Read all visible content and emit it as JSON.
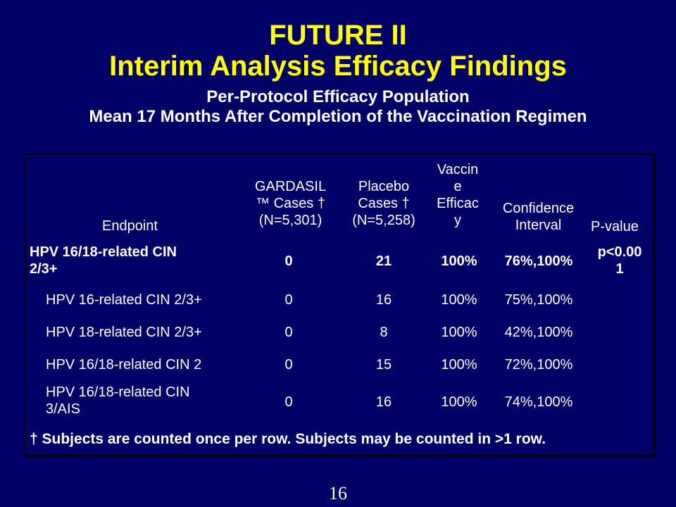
{
  "title": {
    "line1": "FUTURE II",
    "line2": "Interim Analysis Efficacy Findings"
  },
  "subtitle": {
    "line1": "Per-Protocol Efficacy Population",
    "line2": "Mean 17 Months After Completion of the Vaccination Regimen"
  },
  "table": {
    "headers": {
      "endpoint": "Endpoint",
      "gardasil": [
        "GARDASIL",
        "™ Cases †",
        "(N=5,301)"
      ],
      "placebo": [
        "Placebo",
        "Cases †",
        "(N=5,258)"
      ],
      "efficacy": [
        "Vaccin",
        "e",
        "Efficac",
        "y"
      ],
      "ci": [
        "Confidence",
        "Interval"
      ],
      "pvalue": "P-value"
    },
    "rows": [
      {
        "endpoint": [
          "HPV 16/18-related CIN",
          "2/3+"
        ],
        "gardasil": "0",
        "placebo": "21",
        "efficacy": "100%",
        "ci": "76%,100%",
        "pvalue": [
          "p<0.00",
          "1"
        ]
      },
      {
        "endpoint": [
          "HPV 16-related CIN 2/3+"
        ],
        "gardasil": "0",
        "placebo": "16",
        "efficacy": "100%",
        "ci": "75%,100%",
        "pvalue": []
      },
      {
        "endpoint": [
          "HPV 18-related CIN 2/3+"
        ],
        "gardasil": "0",
        "placebo": "8",
        "efficacy": "100%",
        "ci": "42%,100%",
        "pvalue": []
      },
      {
        "endpoint": [
          "HPV 16/18-related CIN 2"
        ],
        "gardasil": "0",
        "placebo": "15",
        "efficacy": "100%",
        "ci": "72%,100%",
        "pvalue": []
      },
      {
        "endpoint": [
          "HPV 16/18-related CIN",
          "3/AIS"
        ],
        "gardasil": "0",
        "placebo": "16",
        "efficacy": "100%",
        "ci": "74%,100%",
        "pvalue": []
      }
    ]
  },
  "footnote": "† Subjects are counted once per row. Subjects may be counted in >1 row.",
  "page_number": "16"
}
